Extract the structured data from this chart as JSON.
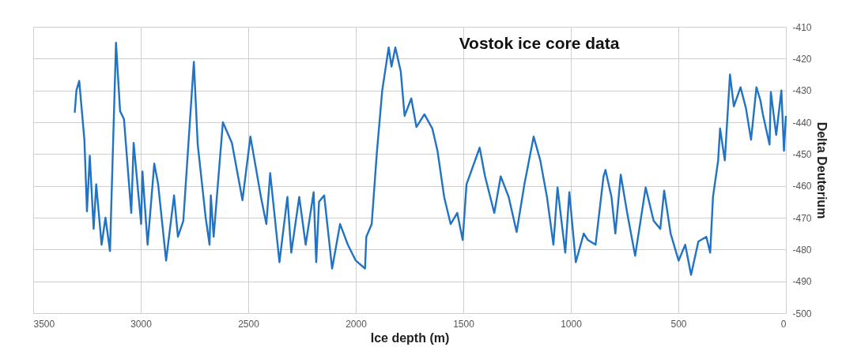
{
  "chart_data": {
    "type": "line",
    "title": "Vostok ice core data",
    "xlabel": "Ice depth (m)",
    "ylabel": "Delta Deuterium",
    "x": [
      3307,
      3299,
      3286,
      3262,
      3250,
      3237,
      3219,
      3207,
      3182,
      3164,
      3143,
      3115,
      3096,
      3078,
      3044,
      3033,
      2998,
      2992,
      2968,
      2937,
      2919,
      2882,
      2845,
      2827,
      2802,
      2753,
      2735,
      2698,
      2680,
      2674,
      2661,
      2618,
      2576,
      2527,
      2490,
      2441,
      2416,
      2398,
      2355,
      2318,
      2300,
      2263,
      2233,
      2196,
      2184,
      2171,
      2147,
      2110,
      2073,
      2037,
      2000,
      1957,
      1951,
      1926,
      1902,
      1877,
      1847,
      1834,
      1816,
      1791,
      1773,
      1742,
      1718,
      1681,
      1644,
      1620,
      1589,
      1559,
      1528,
      1503,
      1485,
      1424,
      1399,
      1356,
      1326,
      1289,
      1252,
      1216,
      1173,
      1142,
      1111,
      1081,
      1062,
      1026,
      1007,
      977,
      940,
      921,
      885,
      848,
      839,
      811,
      793,
      768,
      738,
      701,
      652,
      615,
      584,
      566,
      536,
      499,
      468,
      441,
      407,
      370,
      352,
      339,
      315,
      306,
      284,
      260,
      242,
      211,
      186,
      162,
      137,
      119,
      107,
      76,
      70,
      45,
      21,
      9,
      0
    ],
    "series": [
      {
        "color": "#2173c3",
        "values": [
          -437,
          -430,
          -427,
          -445.5,
          -468,
          -450.5,
          -473.5,
          -459.5,
          -478.5,
          -470,
          -480.5,
          -415,
          -436.5,
          -439,
          -468.5,
          -446.5,
          -472,
          -455.5,
          -478.5,
          -453,
          -459.5,
          -483.5,
          -463,
          -476,
          -471,
          -421,
          -447,
          -470,
          -478.5,
          -463,
          -476,
          -440,
          -446.5,
          -464.5,
          -444.5,
          -463.5,
          -472,
          -456,
          -484,
          -463.5,
          -481,
          -463.5,
          -478.5,
          -462,
          -484,
          -465,
          -463,
          -486,
          -472,
          -478.5,
          -483.5,
          -486,
          -476,
          -472,
          -449.5,
          -430,
          -416.5,
          -422.5,
          -416.5,
          -424,
          -438,
          -432.5,
          -441.5,
          -437.5,
          -442,
          -449,
          -463.5,
          -472,
          -468.5,
          -477,
          -459.5,
          -448,
          -457,
          -468.5,
          -457,
          -463.5,
          -474.5,
          -459.5,
          -444.5,
          -452,
          -463.5,
          -478.5,
          -460.5,
          -481,
          -462,
          -484,
          -475,
          -477,
          -478.5,
          -457,
          -455,
          -463.5,
          -475,
          -456.5,
          -468.5,
          -482,
          -460.5,
          -471,
          -473.5,
          -461.5,
          -475,
          -483.5,
          -478.5,
          -488,
          -477.5,
          -476,
          -481,
          -463.5,
          -452,
          -442,
          -452,
          -425,
          -435,
          -429,
          -435.5,
          -445.5,
          -429,
          -433,
          -437.5,
          -447,
          -430.5,
          -444,
          -430,
          -449,
          -438
        ]
      }
    ],
    "xlim": [
      3500,
      0
    ],
    "xticks": [
      3500,
      3000,
      2500,
      2000,
      1500,
      1000,
      500,
      0
    ],
    "ylim": [
      -500,
      -410
    ],
    "yticks": [
      -500,
      -490,
      -480,
      -470,
      -460,
      -450,
      -440,
      -430,
      -420,
      -410
    ],
    "grid": true
  }
}
